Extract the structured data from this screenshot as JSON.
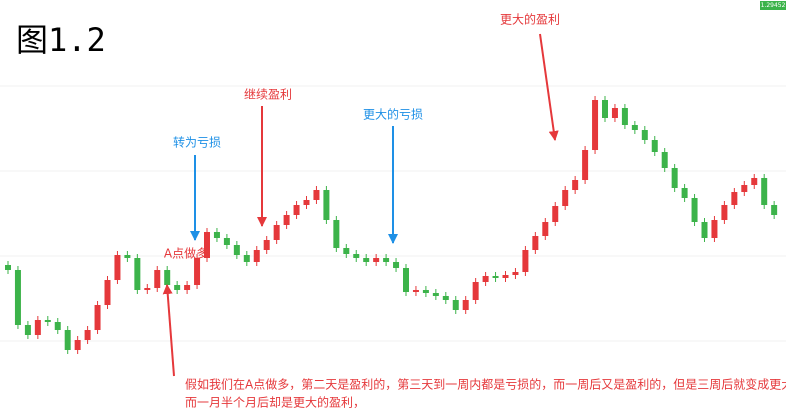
{
  "chart_data": {
    "type": "candlestick",
    "title": "图1.2",
    "price_tag": "1.29452",
    "annotations": [
      "更大的盈利",
      "继续盈利",
      "更大的亏损",
      "转为亏损",
      "A点做多"
    ],
    "note": [
      "假如我们在A点做多，第二天是盈利的，第三天到一周内都是亏损的，而一周后又是盈利的，但是三周后就变成更大的亏损",
      "而一月半个月后却是更大的盈利，"
    ],
    "up_color": "#e5383b",
    "down_color": "#3cb34a",
    "ylim": [
      1.1935,
      1.4
    ],
    "open": [
      1.2675,
      1.265,
      1.2375,
      1.2325,
      1.24,
      1.239,
      1.235,
      1.225,
      1.23,
      1.235,
      1.2475,
      1.26,
      1.2725,
      1.271,
      1.255,
      1.256,
      1.265,
      1.2575,
      1.255,
      1.2575,
      1.271,
      1.284,
      1.281,
      1.2775,
      1.2725,
      1.269,
      1.275,
      1.28,
      1.2875,
      1.2925,
      1.2975,
      1.3,
      1.305,
      1.29,
      1.276,
      1.273,
      1.271,
      1.269,
      1.271,
      1.269,
      1.266,
      1.254,
      1.255,
      1.2535,
      1.252,
      1.25,
      1.245,
      1.25,
      1.259,
      1.262,
      1.261,
      1.2625,
      1.264,
      1.275,
      1.282,
      1.289,
      1.297,
      1.305,
      1.31,
      1.325,
      1.35,
      1.341,
      1.346,
      1.3375,
      1.335,
      1.33,
      1.324,
      1.316,
      1.306,
      1.301,
      1.289,
      1.281,
      1.29,
      1.2975,
      1.304,
      1.3075,
      1.311,
      1.2975
    ],
    "high": [
      1.2695,
      1.267,
      1.2395,
      1.242,
      1.242,
      1.241,
      1.237,
      1.232,
      1.237,
      1.2495,
      1.262,
      1.2745,
      1.2745,
      1.273,
      1.258,
      1.267,
      1.267,
      1.2595,
      1.2595,
      1.273,
      1.286,
      1.286,
      1.283,
      1.2795,
      1.2745,
      1.277,
      1.282,
      1.2895,
      1.2945,
      1.2995,
      1.302,
      1.307,
      1.307,
      1.292,
      1.278,
      1.275,
      1.273,
      1.273,
      1.273,
      1.271,
      1.268,
      1.257,
      1.257,
      1.2555,
      1.254,
      1.252,
      1.252,
      1.261,
      1.264,
      1.264,
      1.2645,
      1.266,
      1.277,
      1.284,
      1.291,
      1.299,
      1.307,
      1.312,
      1.327,
      1.352,
      1.352,
      1.348,
      1.348,
      1.3395,
      1.337,
      1.332,
      1.326,
      1.318,
      1.308,
      1.303,
      1.291,
      1.292,
      1.2995,
      1.306,
      1.3095,
      1.313,
      1.313,
      1.2995
    ],
    "low": [
      1.263,
      1.2355,
      1.2305,
      1.2305,
      1.237,
      1.233,
      1.223,
      1.223,
      1.228,
      1.233,
      1.2455,
      1.258,
      1.269,
      1.253,
      1.253,
      1.254,
      1.2555,
      1.253,
      1.253,
      1.2555,
      1.269,
      1.279,
      1.2755,
      1.2705,
      1.267,
      1.267,
      1.273,
      1.278,
      1.2855,
      1.2905,
      1.2955,
      1.298,
      1.288,
      1.274,
      1.271,
      1.269,
      1.267,
      1.267,
      1.267,
      1.264,
      1.252,
      1.252,
      1.2515,
      1.25,
      1.248,
      1.243,
      1.243,
      1.248,
      1.257,
      1.259,
      1.259,
      1.2605,
      1.262,
      1.273,
      1.28,
      1.287,
      1.295,
      1.303,
      1.308,
      1.323,
      1.339,
      1.339,
      1.3355,
      1.333,
      1.328,
      1.322,
      1.314,
      1.304,
      1.299,
      1.287,
      1.279,
      1.279,
      1.288,
      1.2955,
      1.302,
      1.3055,
      1.2955,
      1.2905
    ],
    "close": [
      1.265,
      1.2375,
      1.2325,
      1.24,
      1.239,
      1.235,
      1.225,
      1.23,
      1.235,
      1.2475,
      1.26,
      1.2725,
      1.271,
      1.255,
      1.256,
      1.265,
      1.2575,
      1.255,
      1.2575,
      1.271,
      1.284,
      1.281,
      1.2775,
      1.2725,
      1.269,
      1.275,
      1.28,
      1.2875,
      1.2925,
      1.2975,
      1.3,
      1.305,
      1.29,
      1.276,
      1.273,
      1.271,
      1.269,
      1.271,
      1.269,
      1.266,
      1.254,
      1.255,
      1.2535,
      1.252,
      1.25,
      1.245,
      1.25,
      1.259,
      1.262,
      1.261,
      1.2625,
      1.264,
      1.275,
      1.282,
      1.289,
      1.297,
      1.305,
      1.31,
      1.325,
      1.35,
      1.341,
      1.346,
      1.3375,
      1.335,
      1.33,
      1.324,
      1.316,
      1.306,
      1.301,
      1.289,
      1.281,
      1.29,
      1.2975,
      1.304,
      1.3075,
      1.311,
      1.2975,
      1.2925
    ]
  }
}
